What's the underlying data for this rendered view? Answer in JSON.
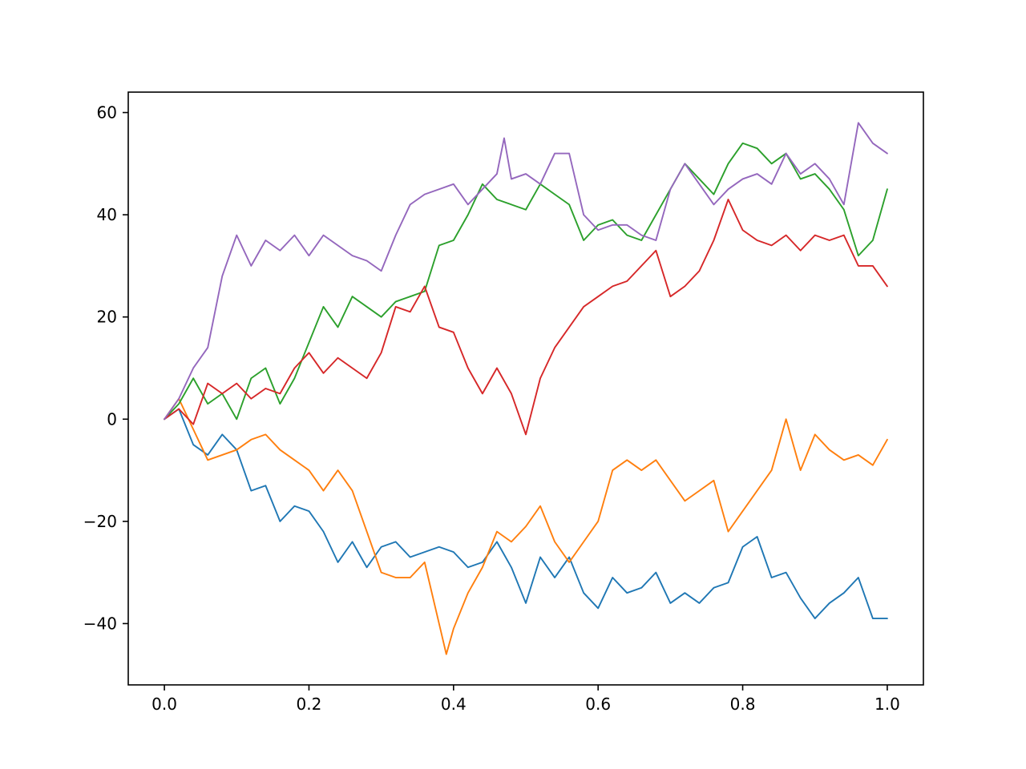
{
  "chart_data": {
    "type": "line",
    "title": "",
    "xlabel": "",
    "ylabel": "",
    "xlim": [
      -0.05,
      1.05
    ],
    "ylim": [
      -52,
      64
    ],
    "grid": false,
    "legend": "none",
    "x_ticks": [
      {
        "value": 0.0,
        "label": "0.0"
      },
      {
        "value": 0.2,
        "label": "0.2"
      },
      {
        "value": 0.4,
        "label": "0.4"
      },
      {
        "value": 0.6,
        "label": "0.6"
      },
      {
        "value": 0.8,
        "label": "0.8"
      },
      {
        "value": 1.0,
        "label": "1.0"
      }
    ],
    "y_ticks": [
      {
        "value": -40,
        "label": "−40"
      },
      {
        "value": -20,
        "label": "−20"
      },
      {
        "value": 0,
        "label": "0"
      },
      {
        "value": 20,
        "label": "20"
      },
      {
        "value": 40,
        "label": "40"
      },
      {
        "value": 60,
        "label": "60"
      }
    ],
    "series": [
      {
        "color": "#1f77b4",
        "points": [
          [
            0.0,
            0
          ],
          [
            0.02,
            2
          ],
          [
            0.04,
            -5
          ],
          [
            0.06,
            -7
          ],
          [
            0.08,
            -3
          ],
          [
            0.1,
            -6
          ],
          [
            0.12,
            -14
          ],
          [
            0.14,
            -13
          ],
          [
            0.16,
            -20
          ],
          [
            0.18,
            -17
          ],
          [
            0.2,
            -18
          ],
          [
            0.22,
            -22
          ],
          [
            0.24,
            -28
          ],
          [
            0.26,
            -24
          ],
          [
            0.28,
            -29
          ],
          [
            0.3,
            -25
          ],
          [
            0.32,
            -24
          ],
          [
            0.34,
            -27
          ],
          [
            0.36,
            -26
          ],
          [
            0.38,
            -25
          ],
          [
            0.4,
            -26
          ],
          [
            0.42,
            -29
          ],
          [
            0.44,
            -28
          ],
          [
            0.46,
            -24
          ],
          [
            0.48,
            -29
          ],
          [
            0.5,
            -36
          ],
          [
            0.52,
            -27
          ],
          [
            0.54,
            -31
          ],
          [
            0.56,
            -27
          ],
          [
            0.58,
            -34
          ],
          [
            0.6,
            -37
          ],
          [
            0.62,
            -31
          ],
          [
            0.64,
            -34
          ],
          [
            0.66,
            -33
          ],
          [
            0.68,
            -30
          ],
          [
            0.7,
            -36
          ],
          [
            0.72,
            -34
          ],
          [
            0.74,
            -36
          ],
          [
            0.76,
            -33
          ],
          [
            0.78,
            -32
          ],
          [
            0.8,
            -25
          ],
          [
            0.82,
            -23
          ],
          [
            0.84,
            -31
          ],
          [
            0.86,
            -30
          ],
          [
            0.88,
            -35
          ],
          [
            0.9,
            -39
          ],
          [
            0.92,
            -36
          ],
          [
            0.94,
            -34
          ],
          [
            0.96,
            -31
          ],
          [
            0.98,
            -39
          ],
          [
            1.0,
            -39
          ]
        ]
      },
      {
        "color": "#ff7f0e",
        "points": [
          [
            0.0,
            0
          ],
          [
            0.02,
            4
          ],
          [
            0.04,
            -2
          ],
          [
            0.06,
            -8
          ],
          [
            0.08,
            -7
          ],
          [
            0.1,
            -6
          ],
          [
            0.12,
            -4
          ],
          [
            0.14,
            -3
          ],
          [
            0.16,
            -6
          ],
          [
            0.18,
            -8
          ],
          [
            0.2,
            -10
          ],
          [
            0.22,
            -14
          ],
          [
            0.24,
            -10
          ],
          [
            0.26,
            -14
          ],
          [
            0.28,
            -22
          ],
          [
            0.3,
            -30
          ],
          [
            0.32,
            -31
          ],
          [
            0.34,
            -31
          ],
          [
            0.36,
            -28
          ],
          [
            0.38,
            -40
          ],
          [
            0.39,
            -46
          ],
          [
            0.4,
            -41
          ],
          [
            0.42,
            -34
          ],
          [
            0.44,
            -29
          ],
          [
            0.46,
            -22
          ],
          [
            0.48,
            -24
          ],
          [
            0.5,
            -21
          ],
          [
            0.52,
            -17
          ],
          [
            0.54,
            -24
          ],
          [
            0.56,
            -28
          ],
          [
            0.58,
            -24
          ],
          [
            0.6,
            -20
          ],
          [
            0.62,
            -10
          ],
          [
            0.64,
            -8
          ],
          [
            0.66,
            -10
          ],
          [
            0.68,
            -8
          ],
          [
            0.7,
            -12
          ],
          [
            0.72,
            -16
          ],
          [
            0.74,
            -14
          ],
          [
            0.76,
            -12
          ],
          [
            0.78,
            -22
          ],
          [
            0.8,
            -18
          ],
          [
            0.82,
            -14
          ],
          [
            0.84,
            -10
          ],
          [
            0.86,
            0
          ],
          [
            0.88,
            -10
          ],
          [
            0.9,
            -3
          ],
          [
            0.92,
            -6
          ],
          [
            0.94,
            -8
          ],
          [
            0.96,
            -7
          ],
          [
            0.98,
            -9
          ],
          [
            1.0,
            -4
          ]
        ]
      },
      {
        "color": "#2ca02c",
        "points": [
          [
            0.0,
            0
          ],
          [
            0.02,
            3
          ],
          [
            0.04,
            8
          ],
          [
            0.06,
            3
          ],
          [
            0.08,
            5
          ],
          [
            0.1,
            0
          ],
          [
            0.12,
            8
          ],
          [
            0.14,
            10
          ],
          [
            0.16,
            3
          ],
          [
            0.18,
            8
          ],
          [
            0.2,
            15
          ],
          [
            0.22,
            22
          ],
          [
            0.24,
            18
          ],
          [
            0.26,
            24
          ],
          [
            0.28,
            22
          ],
          [
            0.3,
            20
          ],
          [
            0.32,
            23
          ],
          [
            0.34,
            24
          ],
          [
            0.36,
            25
          ],
          [
            0.38,
            34
          ],
          [
            0.4,
            35
          ],
          [
            0.42,
            40
          ],
          [
            0.44,
            46
          ],
          [
            0.46,
            43
          ],
          [
            0.48,
            42
          ],
          [
            0.5,
            41
          ],
          [
            0.52,
            46
          ],
          [
            0.54,
            44
          ],
          [
            0.56,
            42
          ],
          [
            0.58,
            35
          ],
          [
            0.6,
            38
          ],
          [
            0.62,
            39
          ],
          [
            0.64,
            36
          ],
          [
            0.66,
            35
          ],
          [
            0.68,
            40
          ],
          [
            0.7,
            45
          ],
          [
            0.72,
            50
          ],
          [
            0.74,
            47
          ],
          [
            0.76,
            44
          ],
          [
            0.78,
            50
          ],
          [
            0.8,
            54
          ],
          [
            0.82,
            53
          ],
          [
            0.84,
            50
          ],
          [
            0.86,
            52
          ],
          [
            0.88,
            47
          ],
          [
            0.9,
            48
          ],
          [
            0.92,
            45
          ],
          [
            0.94,
            41
          ],
          [
            0.96,
            32
          ],
          [
            0.98,
            35
          ],
          [
            1.0,
            45
          ]
        ]
      },
      {
        "color": "#d62728",
        "points": [
          [
            0.0,
            0
          ],
          [
            0.02,
            2
          ],
          [
            0.04,
            -1
          ],
          [
            0.06,
            7
          ],
          [
            0.08,
            5
          ],
          [
            0.1,
            7
          ],
          [
            0.12,
            4
          ],
          [
            0.14,
            6
          ],
          [
            0.16,
            5
          ],
          [
            0.18,
            10
          ],
          [
            0.2,
            13
          ],
          [
            0.22,
            9
          ],
          [
            0.24,
            12
          ],
          [
            0.26,
            10
          ],
          [
            0.28,
            8
          ],
          [
            0.3,
            13
          ],
          [
            0.32,
            22
          ],
          [
            0.34,
            21
          ],
          [
            0.36,
            26
          ],
          [
            0.38,
            18
          ],
          [
            0.4,
            17
          ],
          [
            0.42,
            10
          ],
          [
            0.44,
            5
          ],
          [
            0.46,
            10
          ],
          [
            0.48,
            5
          ],
          [
            0.5,
            -3
          ],
          [
            0.52,
            8
          ],
          [
            0.54,
            14
          ],
          [
            0.56,
            18
          ],
          [
            0.58,
            22
          ],
          [
            0.6,
            24
          ],
          [
            0.62,
            26
          ],
          [
            0.64,
            27
          ],
          [
            0.66,
            30
          ],
          [
            0.68,
            33
          ],
          [
            0.7,
            24
          ],
          [
            0.72,
            26
          ],
          [
            0.74,
            29
          ],
          [
            0.76,
            35
          ],
          [
            0.78,
            43
          ],
          [
            0.8,
            37
          ],
          [
            0.82,
            35
          ],
          [
            0.84,
            34
          ],
          [
            0.86,
            36
          ],
          [
            0.88,
            33
          ],
          [
            0.9,
            36
          ],
          [
            0.92,
            35
          ],
          [
            0.94,
            36
          ],
          [
            0.96,
            30
          ],
          [
            0.98,
            30
          ],
          [
            1.0,
            26
          ]
        ]
      },
      {
        "color": "#9467bd",
        "points": [
          [
            0.0,
            0
          ],
          [
            0.02,
            4
          ],
          [
            0.04,
            10
          ],
          [
            0.06,
            14
          ],
          [
            0.08,
            28
          ],
          [
            0.1,
            36
          ],
          [
            0.12,
            30
          ],
          [
            0.14,
            35
          ],
          [
            0.16,
            33
          ],
          [
            0.18,
            36
          ],
          [
            0.2,
            32
          ],
          [
            0.22,
            36
          ],
          [
            0.24,
            34
          ],
          [
            0.26,
            32
          ],
          [
            0.28,
            31
          ],
          [
            0.3,
            29
          ],
          [
            0.32,
            36
          ],
          [
            0.34,
            42
          ],
          [
            0.36,
            44
          ],
          [
            0.38,
            45
          ],
          [
            0.4,
            46
          ],
          [
            0.42,
            42
          ],
          [
            0.44,
            45
          ],
          [
            0.46,
            48
          ],
          [
            0.47,
            55
          ],
          [
            0.48,
            47
          ],
          [
            0.5,
            48
          ],
          [
            0.52,
            46
          ],
          [
            0.54,
            52
          ],
          [
            0.56,
            52
          ],
          [
            0.58,
            40
          ],
          [
            0.6,
            37
          ],
          [
            0.62,
            38
          ],
          [
            0.64,
            38
          ],
          [
            0.66,
            36
          ],
          [
            0.68,
            35
          ],
          [
            0.7,
            45
          ],
          [
            0.72,
            50
          ],
          [
            0.74,
            46
          ],
          [
            0.76,
            42
          ],
          [
            0.78,
            45
          ],
          [
            0.8,
            47
          ],
          [
            0.82,
            48
          ],
          [
            0.84,
            46
          ],
          [
            0.86,
            52
          ],
          [
            0.88,
            48
          ],
          [
            0.9,
            50
          ],
          [
            0.92,
            47
          ],
          [
            0.94,
            42
          ],
          [
            0.96,
            58
          ],
          [
            0.98,
            54
          ],
          [
            1.0,
            52
          ]
        ]
      }
    ]
  }
}
